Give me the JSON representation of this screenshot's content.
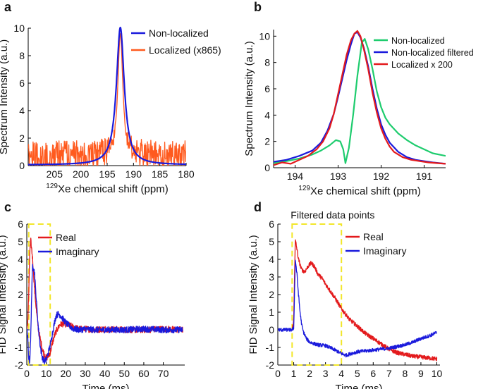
{
  "chart_data": [
    {
      "id": "a",
      "type": "line",
      "panel_label": "a",
      "xlabel_sup": "129",
      "xlabel": "Xe chemical shift (ppm)",
      "ylabel": "Spectrum Intensity (a.u.)",
      "xlim": [
        180,
        210
      ],
      "ylim": [
        0,
        10
      ],
      "x_reversed": true,
      "xticks": [
        205,
        200,
        195,
        190,
        185,
        180
      ],
      "yticks": [
        0,
        2,
        4,
        6,
        8,
        10
      ],
      "legend": [
        "Non-localized",
        "Localized (x865)"
      ],
      "series": [
        {
          "name": "Non-localized",
          "color": "#1a1adc",
          "shape": "lorentzian",
          "center": 192.5,
          "width": 0.9,
          "peak": 10.0,
          "baseline": 0.05
        },
        {
          "name": "Localized (x865)",
          "color": "#ff5a1e",
          "shape": "noisy",
          "center": 192.5,
          "width": 0.6,
          "peak": 9.6,
          "noise": 1.1,
          "baseline": 0.7
        }
      ]
    },
    {
      "id": "b",
      "type": "line",
      "panel_label": "b",
      "xlabel_sup": "129",
      "xlabel": "Xe chemical shift (ppm)",
      "ylabel": "Spectrum Intensity (a.u.)",
      "xlim": [
        190.5,
        194.5
      ],
      "ylim": [
        0,
        10.5
      ],
      "x_reversed": true,
      "xticks": [
        194,
        193,
        192,
        191
      ],
      "yticks": [
        0,
        2,
        4,
        6,
        8,
        10
      ],
      "legend": [
        "Non-localized",
        "Non-localized filtered",
        "Localized x 200"
      ],
      "series": [
        {
          "name": "Non-localized",
          "color": "#1ecc6e",
          "x": [
            194.5,
            194.2,
            193.9,
            193.6,
            193.4,
            193.2,
            193.05,
            192.95,
            192.88,
            192.83,
            192.75,
            192.65,
            192.55,
            192.45,
            192.38,
            192.3,
            192.2,
            192.1,
            192.0,
            191.9,
            191.8,
            191.6,
            191.4,
            191.2,
            191.0,
            190.8,
            190.5
          ],
          "y": [
            0.35,
            0.5,
            0.7,
            1.0,
            1.3,
            1.7,
            2.1,
            2.0,
            1.4,
            0.35,
            1.5,
            4.0,
            7.0,
            9.5,
            9.8,
            9.0,
            7.5,
            5.8,
            4.6,
            3.8,
            3.3,
            2.6,
            2.1,
            1.7,
            1.4,
            1.1,
            0.9
          ]
        },
        {
          "name": "Non-localized filtered",
          "color": "#1a1adc",
          "x": [
            194.5,
            194.2,
            193.9,
            193.6,
            193.4,
            193.25,
            193.1,
            193.0,
            192.9,
            192.8,
            192.7,
            192.62,
            192.55,
            192.48,
            192.4,
            192.3,
            192.2,
            192.1,
            192.0,
            191.9,
            191.8,
            191.6,
            191.4,
            191.2,
            191.0,
            190.8,
            190.5
          ],
          "y": [
            0.45,
            0.6,
            0.9,
            1.3,
            1.9,
            2.8,
            4.1,
            5.4,
            6.8,
            8.2,
            9.4,
            10.2,
            10.3,
            9.9,
            9.1,
            7.7,
            6.0,
            4.5,
            3.3,
            2.5,
            1.9,
            1.2,
            0.8,
            0.6,
            0.5,
            0.4,
            0.3
          ]
        },
        {
          "name": "Localized x 200",
          "color": "#e31a1c",
          "x": [
            194.5,
            194.3,
            194.1,
            193.9,
            193.7,
            193.5,
            193.35,
            193.2,
            193.1,
            193.0,
            192.9,
            192.8,
            192.7,
            192.62,
            192.55,
            192.48,
            192.4,
            192.3,
            192.2,
            192.1,
            192.0,
            191.9,
            191.8,
            191.7,
            191.5,
            191.3,
            191.1,
            190.9,
            190.7,
            190.5
          ],
          "y": [
            0.2,
            0.4,
            0.3,
            0.6,
            0.9,
            1.4,
            2.0,
            3.0,
            4.1,
            5.6,
            7.1,
            8.6,
            9.7,
            10.2,
            10.4,
            10.0,
            9.0,
            7.5,
            5.7,
            4.2,
            3.0,
            2.2,
            1.6,
            1.2,
            0.8,
            0.6,
            0.5,
            0.4,
            0.35,
            0.3
          ]
        }
      ]
    },
    {
      "id": "c",
      "type": "line",
      "panel_label": "c",
      "xlabel": "Time (ms)",
      "ylabel": "FID Signal Intensity (a.u.)",
      "xlim": [
        0,
        81
      ],
      "ylim": [
        -2,
        6
      ],
      "xticks": [
        0,
        10,
        20,
        30,
        40,
        50,
        60,
        70
      ],
      "yticks": [
        -2,
        -1,
        0,
        1,
        2,
        3,
        4,
        5,
        6
      ],
      "legend": [
        "Real",
        "Imaginary"
      ],
      "box": {
        "x0": 1,
        "x1": 12,
        "y0": -2,
        "y1": 6
      },
      "series": [
        {
          "name": "Real",
          "color": "#e31a1c",
          "noise": 0.18,
          "x": [
            0,
            0.5,
            1,
            1.5,
            2,
            3,
            4,
            5,
            6,
            7,
            8,
            9,
            10,
            11,
            12,
            13,
            14,
            15,
            17,
            19,
            21,
            24,
            27,
            30,
            35,
            40,
            50,
            60,
            70,
            80
          ],
          "y": [
            0,
            0.5,
            2.0,
            4.3,
            5.1,
            4.0,
            2.3,
            1.0,
            0.0,
            -0.6,
            -1.1,
            -1.4,
            -1.6,
            -1.5,
            -1.3,
            -0.8,
            -0.4,
            -0.1,
            0.3,
            0.35,
            0.3,
            0.15,
            0.05,
            0.05,
            0.0,
            0.05,
            0.0,
            0.0,
            0.05,
            0.0
          ]
        },
        {
          "name": "Imaginary",
          "color": "#1a1adc",
          "noise": 0.18,
          "x": [
            0,
            0.5,
            1,
            1.5,
            2,
            2.5,
            3,
            4,
            5,
            6,
            7,
            8,
            9,
            10,
            11,
            12,
            13,
            14,
            15,
            16,
            17,
            18,
            20,
            22,
            24,
            27,
            30,
            35,
            40,
            50,
            60,
            70,
            80
          ],
          "y": [
            0,
            -0.5,
            -1.6,
            -1.8,
            -0.5,
            2.0,
            3.8,
            3.2,
            1.5,
            0.0,
            -1.0,
            -1.6,
            -1.8,
            -1.7,
            -1.3,
            -0.9,
            -0.3,
            0.3,
            0.8,
            0.9,
            0.85,
            0.7,
            0.4,
            0.2,
            0.05,
            0.0,
            0.05,
            0.0,
            0.0,
            0.0,
            0.05,
            0.0,
            0.0
          ]
        }
      ]
    },
    {
      "id": "d",
      "type": "line",
      "panel_label": "d",
      "xlabel": "Time (ms)",
      "ylabel": "FID Signal Intensity (a.u.)",
      "xlim": [
        0,
        10.2
      ],
      "ylim": [
        -2,
        6
      ],
      "xticks": [
        0,
        1,
        2,
        3,
        4,
        5,
        6,
        7,
        8,
        9,
        10
      ],
      "yticks": [
        -2,
        -1,
        0,
        1,
        2,
        3,
        4,
        5,
        6
      ],
      "legend": [
        "Real",
        "Imaginary"
      ],
      "box_label": "Filtered data points",
      "box": {
        "x0": 0.9,
        "x1": 4.0,
        "y0": -2,
        "y1": 6
      },
      "series": [
        {
          "name": "Real",
          "color": "#e31a1c",
          "noise": 0.12,
          "x": [
            0.9,
            1.0,
            1.05,
            1.1,
            1.2,
            1.3,
            1.5,
            1.7,
            1.9,
            2.1,
            2.3,
            2.5,
            2.8,
            3.0,
            3.3,
            3.6,
            4.0,
            4.5,
            5.0,
            5.5,
            6.0,
            6.5,
            7.0,
            7.5,
            8.0,
            8.5,
            9.0,
            9.5,
            10.0
          ],
          "y": [
            0,
            0.5,
            3.0,
            5.1,
            4.6,
            4.0,
            3.4,
            3.3,
            3.6,
            3.8,
            3.6,
            3.2,
            2.9,
            2.6,
            2.2,
            1.8,
            1.2,
            0.6,
            0.2,
            -0.2,
            -0.5,
            -0.8,
            -1.1,
            -1.3,
            -1.4,
            -1.5,
            -1.55,
            -1.6,
            -1.65
          ]
        },
        {
          "name": "Imaginary",
          "color": "#1a1adc",
          "noise": 0.1,
          "x": [
            0,
            0.5,
            0.9,
            1.0,
            1.05,
            1.1,
            1.2,
            1.3,
            1.4,
            1.5,
            1.6,
            1.8,
            2.0,
            2.5,
            3.0,
            3.5,
            4.0,
            4.3,
            4.6,
            5.0,
            5.5,
            6.0,
            6.5,
            7.0,
            7.5,
            8.0,
            8.5,
            9.0,
            9.5,
            10.0
          ],
          "y": [
            0,
            0,
            0,
            0.1,
            2.0,
            4.0,
            3.2,
            2.0,
            1.0,
            0.3,
            -0.1,
            -0.5,
            -0.7,
            -0.85,
            -0.9,
            -1.1,
            -1.35,
            -1.45,
            -1.35,
            -1.25,
            -1.2,
            -1.15,
            -1.1,
            -1.05,
            -0.95,
            -0.85,
            -0.7,
            -0.5,
            -0.35,
            -0.15
          ]
        }
      ]
    }
  ]
}
